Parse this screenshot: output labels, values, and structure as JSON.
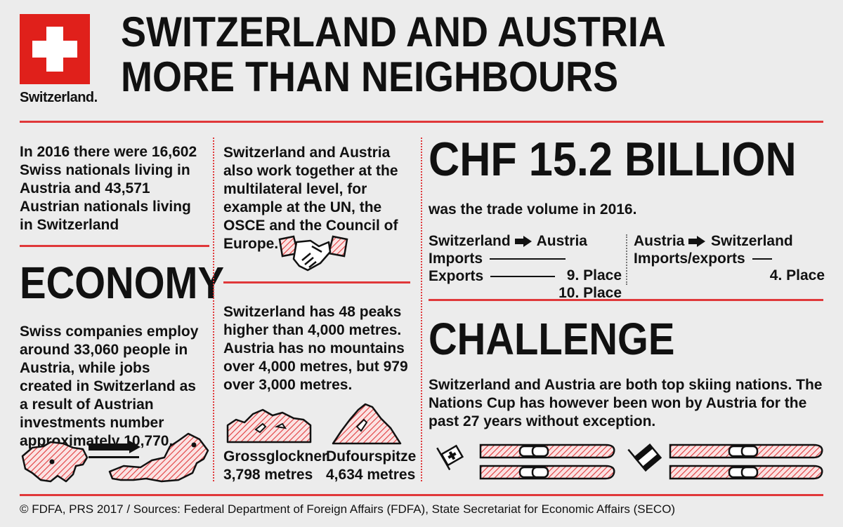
{
  "logo": {
    "label": "Switzerland."
  },
  "title": {
    "line1": "SWITZERLAND AND AUSTRIA",
    "line2": "MORE THAN NEIGHBOURS"
  },
  "col1": {
    "intro": "In 2016 there were 16,602 Swiss nationals living in Austria and 43,571 Austrian nationals living in Switzerland",
    "economy_heading": "ECONOMY",
    "economy_text": "Swiss companies employ around 33,060 people in Austria, while jobs created in Switzerland as a result of Austrian investments number approximately 10,770."
  },
  "col2": {
    "multilateral_text": "Switzerland and Austria also work together at the multilateral level, for example at the UN, the OSCE and the Council of Europe.",
    "peaks_text": "Switzerland has 48 peaks higher than 4,000 metres. Austria has no mountains over 4,000 metres, but 979 over 3,000 metres.",
    "mountains": [
      {
        "name": "Grossglockner",
        "height": "3,798 metres"
      },
      {
        "name": "Dufourspitze",
        "height": "4,634 metres"
      }
    ]
  },
  "trade": {
    "amount": "CHF 15.2 BILLION",
    "caption": "was the trade volume in 2016.",
    "ch_to_at": {
      "from": "Switzerland",
      "to": "Austria",
      "rows": [
        {
          "label": "Imports",
          "place": "9. Place"
        },
        {
          "label": "Exports",
          "place": "10. Place"
        }
      ]
    },
    "at_to_ch": {
      "from": "Austria",
      "to": "Switzerland",
      "rows": [
        {
          "label": "Imports/exports",
          "place": "4. Place"
        }
      ]
    }
  },
  "challenge": {
    "heading": "CHALLENGE",
    "text": "Switzerland and Austria are both top skiing nations. The Nations Cup has however been won by Austria for the past 27 years without exception."
  },
  "footer": "© FDFA, PRS 2017 / Sources: Federal Department of Foreign Affairs (FDFA), State Secretariat for Economic Affairs (SECO)",
  "colors": {
    "accent": "#e0383a",
    "background": "#ececec",
    "text": "#111111"
  },
  "icons": [
    "swiss-cross-logo",
    "handshake-icon",
    "switzerland-map-icon",
    "arrow-icon",
    "austria-map-icon",
    "grossglockner-mountain-icon",
    "dufourspitze-mountain-icon",
    "swiss-flag-icon",
    "austria-flag-icon",
    "ski-icon"
  ]
}
